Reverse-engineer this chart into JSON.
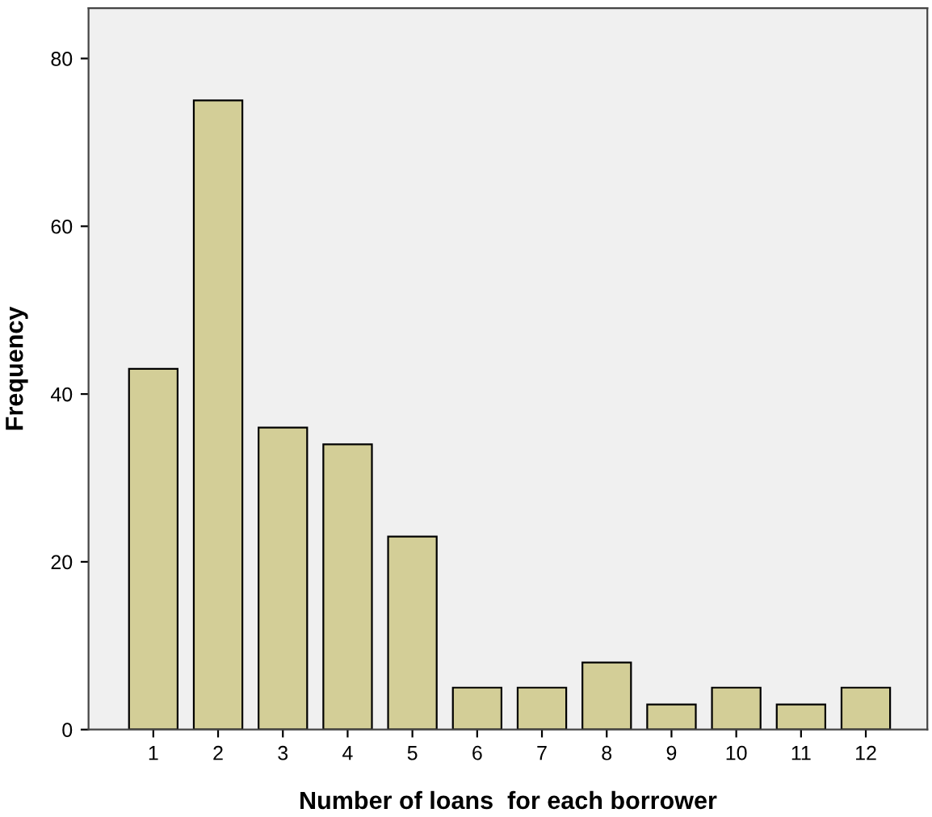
{
  "chart_data": {
    "type": "bar",
    "xlabel": "Number of loans  for each borrower",
    "ylabel": "Frequency",
    "categories": [
      "1",
      "2",
      "3",
      "4",
      "5",
      "6",
      "7",
      "8",
      "9",
      "10",
      "11",
      "12"
    ],
    "values": [
      43,
      75,
      36,
      34,
      23,
      5,
      5,
      8,
      3,
      5,
      3,
      5
    ],
    "color": "#d3ce97",
    "ylim": [
      0,
      86
    ],
    "yticks": [
      0,
      20,
      40,
      60,
      80
    ],
    "grid": false
  }
}
